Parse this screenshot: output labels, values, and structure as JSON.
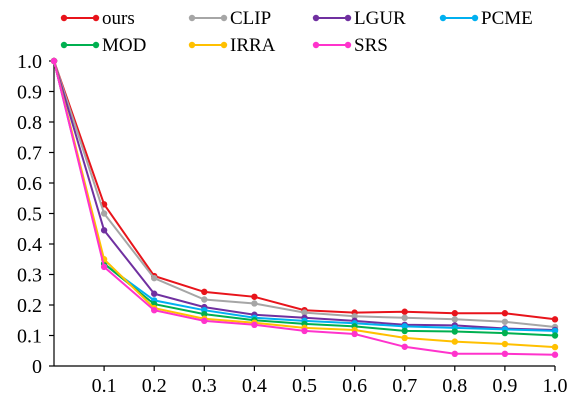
{
  "chart_data": {
    "type": "line",
    "x": [
      0,
      0.1,
      0.2,
      0.3,
      0.4,
      0.5,
      0.6,
      0.7,
      0.8,
      0.9,
      1.0
    ],
    "x_tick_labels": [
      "0.1",
      "0.2",
      "0.3",
      "0.4",
      "0.5",
      "0.6",
      "0.7",
      "0.8",
      "0.9",
      "1.0"
    ],
    "y_tick_labels": [
      "0",
      "0.1",
      "0.2",
      "0.3",
      "0.4",
      "0.5",
      "0.6",
      "0.7",
      "0.8",
      "0.9",
      "1.0"
    ],
    "xlim": [
      0,
      1.0
    ],
    "ylim": [
      0,
      1.0
    ],
    "grid": false,
    "legend_position": "top",
    "series": [
      {
        "name": "ours",
        "color": "#e8141b",
        "values": [
          1.0,
          0.53,
          0.295,
          0.243,
          0.227,
          0.183,
          0.175,
          0.178,
          0.173,
          0.173,
          0.153
        ]
      },
      {
        "name": "CLIP",
        "color": "#a6a6a6",
        "values": [
          1.0,
          0.5,
          0.288,
          0.218,
          0.205,
          0.175,
          0.163,
          0.158,
          0.153,
          0.145,
          0.128
        ]
      },
      {
        "name": "LGUR",
        "color": "#7030a0",
        "values": [
          1.0,
          0.445,
          0.237,
          0.193,
          0.168,
          0.158,
          0.148,
          0.135,
          0.133,
          0.123,
          0.118
        ]
      },
      {
        "name": "PCME",
        "color": "#00b0f0",
        "values": [
          1.0,
          0.335,
          0.215,
          0.183,
          0.158,
          0.148,
          0.14,
          0.13,
          0.125,
          0.12,
          0.115
        ]
      },
      {
        "name": "MOD",
        "color": "#00b050",
        "values": [
          1.0,
          0.335,
          0.203,
          0.17,
          0.15,
          0.138,
          0.13,
          0.115,
          0.113,
          0.108,
          0.1
        ]
      },
      {
        "name": "IRRA",
        "color": "#ffc000",
        "values": [
          1.0,
          0.35,
          0.19,
          0.155,
          0.142,
          0.125,
          0.118,
          0.092,
          0.08,
          0.072,
          0.062
        ]
      },
      {
        "name": "SRS",
        "color": "#ff33cc",
        "values": [
          1.0,
          0.325,
          0.183,
          0.148,
          0.135,
          0.115,
          0.105,
          0.063,
          0.04,
          0.04,
          0.037
        ]
      }
    ]
  }
}
